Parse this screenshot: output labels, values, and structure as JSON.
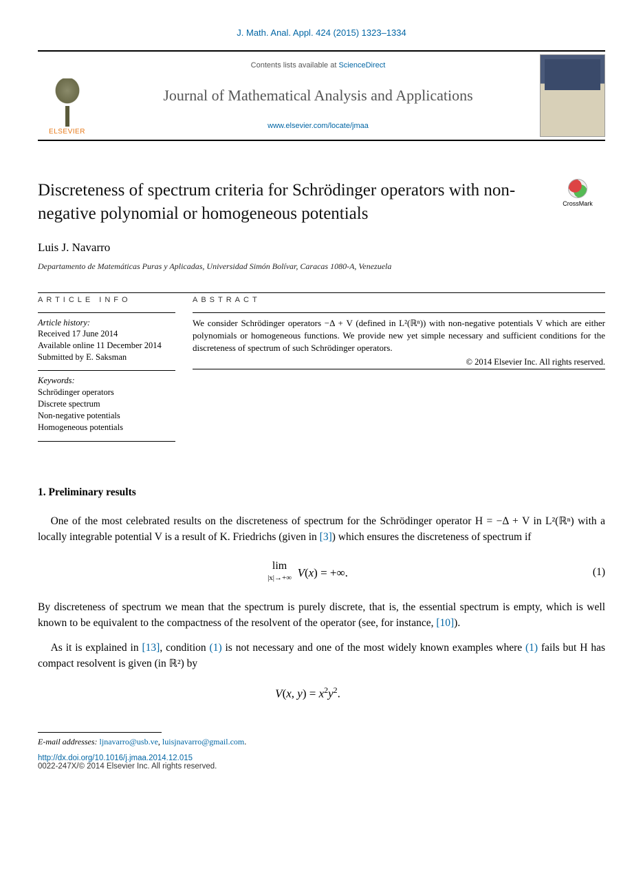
{
  "top_reference": "J. Math. Anal. Appl. 424 (2015) 1323–1334",
  "header": {
    "contents_prefix": "Contents lists available at ",
    "contents_link": "ScienceDirect",
    "journal_name": "Journal of Mathematical Analysis and Applications",
    "journal_url": "www.elsevier.com/locate/jmaa",
    "publisher_name": "ELSEVIER"
  },
  "crossmark_label": "CrossMark",
  "title": "Discreteness of spectrum criteria for Schrödinger operators with non-negative polynomial or homogeneous potentials",
  "author": "Luis J. Navarro",
  "affiliation": "Departamento de Matemáticas Puras y Aplicadas, Universidad Simón Bolívar, Caracas 1080-A, Venezuela",
  "article_info": {
    "label": "article info",
    "history_label": "Article history:",
    "received": "Received 17 June 2014",
    "available": "Available online 11 December 2014",
    "submitted": "Submitted by E. Saksman",
    "keywords_label": "Keywords:",
    "keywords": [
      "Schrödinger operators",
      "Discrete spectrum",
      "Non-negative potentials",
      "Homogeneous potentials"
    ]
  },
  "abstract": {
    "label": "abstract",
    "text": "We consider Schrödinger operators −Δ + V (defined in L²(ℝⁿ)) with non-negative potentials V which are either polynomials or homogeneous functions. We provide new yet simple necessary and sufficient conditions for the discreteness of spectrum of such Schrödinger operators.",
    "copyright": "© 2014 Elsevier Inc. All rights reserved."
  },
  "section1": {
    "heading": "1. Preliminary results",
    "para1_a": "One of the most celebrated results on the discreteness of spectrum for the Schrödinger operator H = −Δ + V in L²(ℝⁿ) with a locally integrable potential V is a result of K. Friedrichs (given in ",
    "para1_ref1": "[3]",
    "para1_b": ") which ensures the discreteness of spectrum if",
    "eqn1": "lim   V(x) = +∞.",
    "eqn1_sub": "|x|→+∞",
    "eqn1_num": "(1)",
    "para2_a": "By discreteness of spectrum we mean that the spectrum is purely discrete, that is, the essential spectrum is empty, which is well known to be equivalent to the compactness of the resolvent of the operator (see, for instance, ",
    "para2_ref": "[10]",
    "para2_b": ").",
    "para3_a": "As it is explained in ",
    "para3_ref1": "[13]",
    "para3_b": ", condition ",
    "para3_ref2": "(1)",
    "para3_c": " is not necessary and one of the most widely known examples where ",
    "para3_ref3": "(1)",
    "para3_d": " fails but H has compact resolvent is given (in ℝ²) by",
    "eqn2": "V(x, y) = x²y²."
  },
  "footer": {
    "email_label": "E-mail addresses: ",
    "email1": "ljnavarro@usb.ve",
    "email_sep": ", ",
    "email2": "luisjnavarro@gmail.com",
    "email_end": ".",
    "doi": "http://dx.doi.org/10.1016/j.jmaa.2014.12.015",
    "rights": "0022-247X/© 2014 Elsevier Inc. All rights reserved."
  },
  "colors": {
    "link": "#0065a4",
    "elsevier_orange": "#e67817",
    "text": "#000000",
    "muted": "#555555"
  }
}
